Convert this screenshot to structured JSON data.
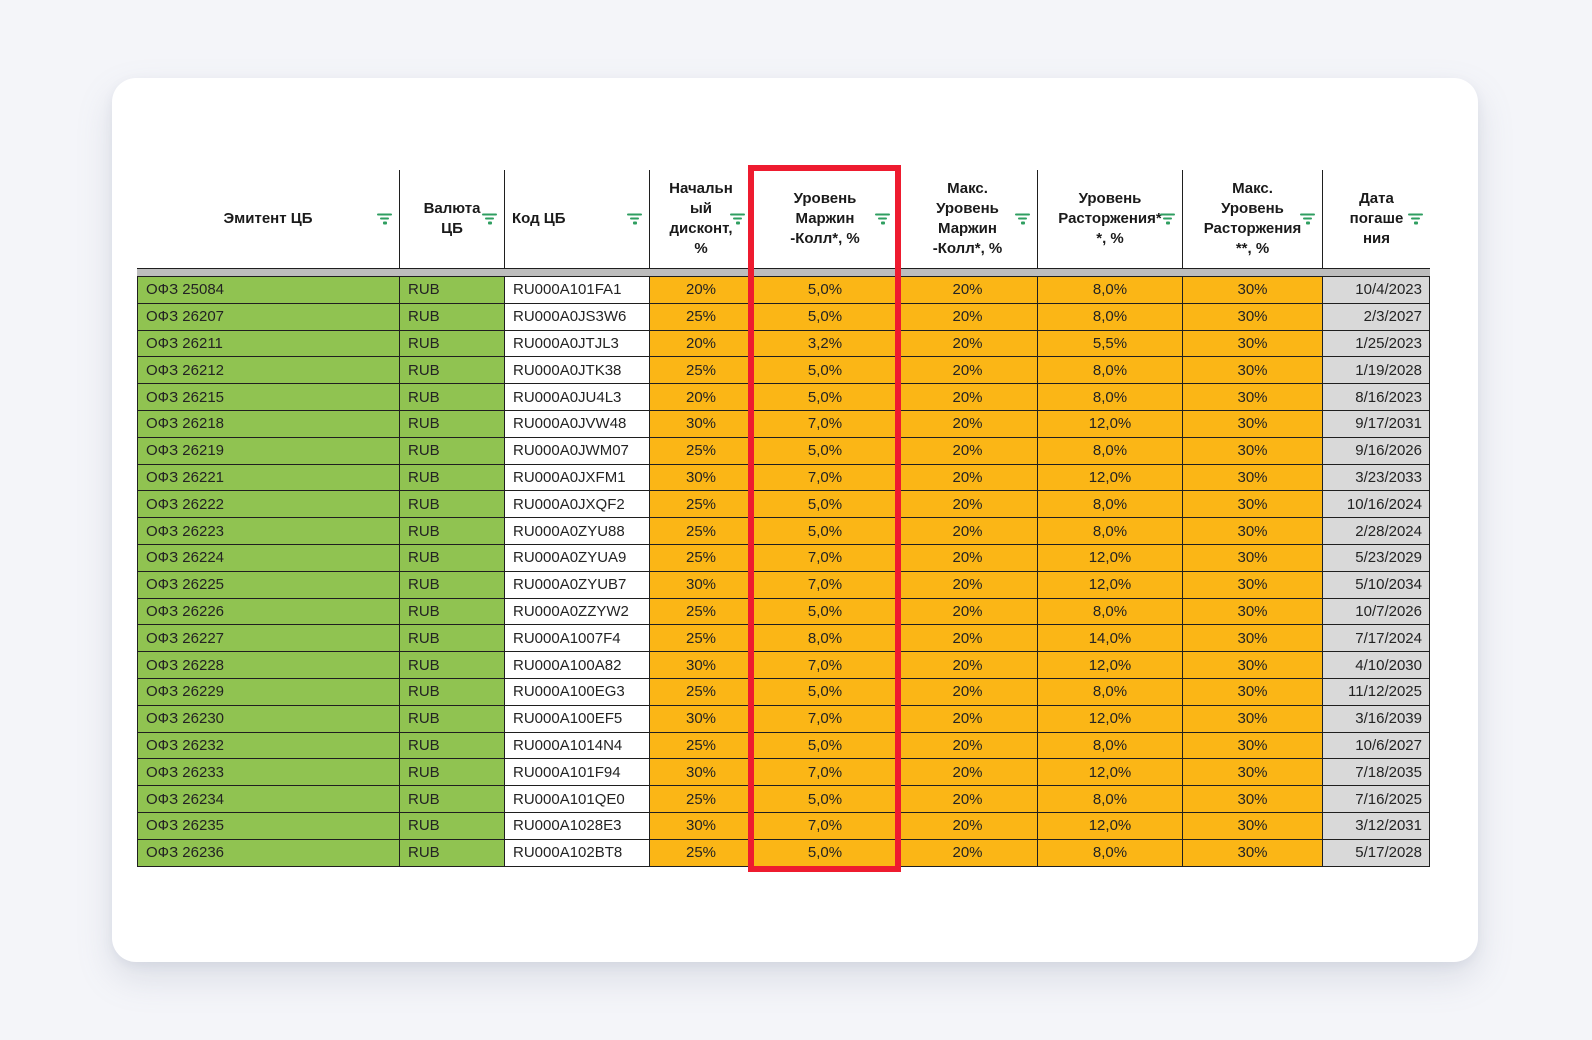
{
  "colors": {
    "page_bg": "#f4f5f9",
    "card_bg": "#ffffff",
    "green": "#90c351",
    "orange": "#fbb616",
    "date_gray": "#d9d9d9",
    "spacer_gray": "#bdbdbd",
    "border": "#1f1f1f",
    "highlight_red": "#ee1b2f",
    "icon_green": "#2f9e60",
    "header_text": "#1a1a1a",
    "cell_text": "#232323"
  },
  "table": {
    "highlighted_column": "Уровень Маржин-Колл*, %",
    "columns": [
      {
        "id": "issuer",
        "label": "Эмитент ЦБ",
        "align": "left",
        "header_align": "center",
        "bg": "green"
      },
      {
        "id": "currency",
        "label": "Валюта\nЦБ",
        "align": "left",
        "header_align": "center",
        "bg": "green"
      },
      {
        "id": "code",
        "label": "Код ЦБ",
        "align": "left",
        "header_align": "left",
        "bg": "white"
      },
      {
        "id": "initial-discount",
        "label": "Начальн\nый\nдисконт,\n%",
        "align": "center",
        "header_align": "center",
        "bg": "orange"
      },
      {
        "id": "margin-call",
        "label": "Уровень\nМаржин\n-Колл*, %",
        "align": "center",
        "header_align": "center",
        "bg": "orange"
      },
      {
        "id": "max-margin-call",
        "label": "Макс.\nУровень\nМаржин\n-Колл*, %",
        "align": "center",
        "header_align": "center",
        "bg": "orange"
      },
      {
        "id": "termination-level",
        "label": "Уровень\nРасторжения*\n*, %",
        "align": "center",
        "header_align": "center",
        "bg": "orange"
      },
      {
        "id": "max-termination-level",
        "label": "Макс.\nУровень\nРасторжения\n**, %",
        "align": "center",
        "header_align": "center",
        "bg": "orange"
      },
      {
        "id": "maturity-date",
        "label": "Дата\nпогаше\nния",
        "align": "right",
        "header_align": "center",
        "bg": "gray"
      }
    ],
    "rows": [
      [
        "ОФЗ 25084",
        "RUB",
        "RU000A101FA1",
        "20%",
        "5,0%",
        "20%",
        "8,0%",
        "30%",
        "10/4/2023"
      ],
      [
        "ОФЗ 26207",
        "RUB",
        "RU000A0JS3W6",
        "25%",
        "5,0%",
        "20%",
        "8,0%",
        "30%",
        "2/3/2027"
      ],
      [
        "ОФЗ 26211",
        "RUB",
        "RU000A0JTJL3",
        "20%",
        "3,2%",
        "20%",
        "5,5%",
        "30%",
        "1/25/2023"
      ],
      [
        "ОФЗ 26212",
        "RUB",
        "RU000A0JTK38",
        "25%",
        "5,0%",
        "20%",
        "8,0%",
        "30%",
        "1/19/2028"
      ],
      [
        "ОФЗ 26215",
        "RUB",
        "RU000A0JU4L3",
        "20%",
        "5,0%",
        "20%",
        "8,0%",
        "30%",
        "8/16/2023"
      ],
      [
        "ОФЗ 26218",
        "RUB",
        "RU000A0JVW48",
        "30%",
        "7,0%",
        "20%",
        "12,0%",
        "30%",
        "9/17/2031"
      ],
      [
        "ОФЗ 26219",
        "RUB",
        "RU000A0JWM07",
        "25%",
        "5,0%",
        "20%",
        "8,0%",
        "30%",
        "9/16/2026"
      ],
      [
        "ОФЗ 26221",
        "RUB",
        "RU000A0JXFM1",
        "30%",
        "7,0%",
        "20%",
        "12,0%",
        "30%",
        "3/23/2033"
      ],
      [
        "ОФЗ 26222",
        "RUB",
        "RU000A0JXQF2",
        "25%",
        "5,0%",
        "20%",
        "8,0%",
        "30%",
        "10/16/2024"
      ],
      [
        "ОФЗ 26223",
        "RUB",
        "RU000A0ZYU88",
        "25%",
        "5,0%",
        "20%",
        "8,0%",
        "30%",
        "2/28/2024"
      ],
      [
        "ОФЗ 26224",
        "RUB",
        "RU000A0ZYUA9",
        "25%",
        "7,0%",
        "20%",
        "12,0%",
        "30%",
        "5/23/2029"
      ],
      [
        "ОФЗ 26225",
        "RUB",
        "RU000A0ZYUB7",
        "30%",
        "7,0%",
        "20%",
        "12,0%",
        "30%",
        "5/10/2034"
      ],
      [
        "ОФЗ 26226",
        "RUB",
        "RU000A0ZZYW2",
        "25%",
        "5,0%",
        "20%",
        "8,0%",
        "30%",
        "10/7/2026"
      ],
      [
        "ОФЗ 26227",
        "RUB",
        "RU000A1007F4",
        "25%",
        "8,0%",
        "20%",
        "14,0%",
        "30%",
        "7/17/2024"
      ],
      [
        "ОФЗ 26228",
        "RUB",
        "RU000A100A82",
        "30%",
        "7,0%",
        "20%",
        "12,0%",
        "30%",
        "4/10/2030"
      ],
      [
        "ОФЗ 26229",
        "RUB",
        "RU000A100EG3",
        "25%",
        "5,0%",
        "20%",
        "8,0%",
        "30%",
        "11/12/2025"
      ],
      [
        "ОФЗ 26230",
        "RUB",
        "RU000A100EF5",
        "30%",
        "7,0%",
        "20%",
        "12,0%",
        "30%",
        "3/16/2039"
      ],
      [
        "ОФЗ 26232",
        "RUB",
        "RU000A1014N4",
        "25%",
        "5,0%",
        "20%",
        "8,0%",
        "30%",
        "10/6/2027"
      ],
      [
        "ОФЗ 26233",
        "RUB",
        "RU000A101F94",
        "30%",
        "7,0%",
        "20%",
        "12,0%",
        "30%",
        "7/18/2035"
      ],
      [
        "ОФЗ 26234",
        "RUB",
        "RU000A101QE0",
        "25%",
        "5,0%",
        "20%",
        "8,0%",
        "30%",
        "7/16/2025"
      ],
      [
        "ОФЗ 26235",
        "RUB",
        "RU000A1028E3",
        "30%",
        "7,0%",
        "20%",
        "12,0%",
        "30%",
        "3/12/2031"
      ],
      [
        "ОФЗ 26236",
        "RUB",
        "RU000A102BT8",
        "25%",
        "5,0%",
        "20%",
        "8,0%",
        "30%",
        "5/17/2028"
      ]
    ]
  }
}
